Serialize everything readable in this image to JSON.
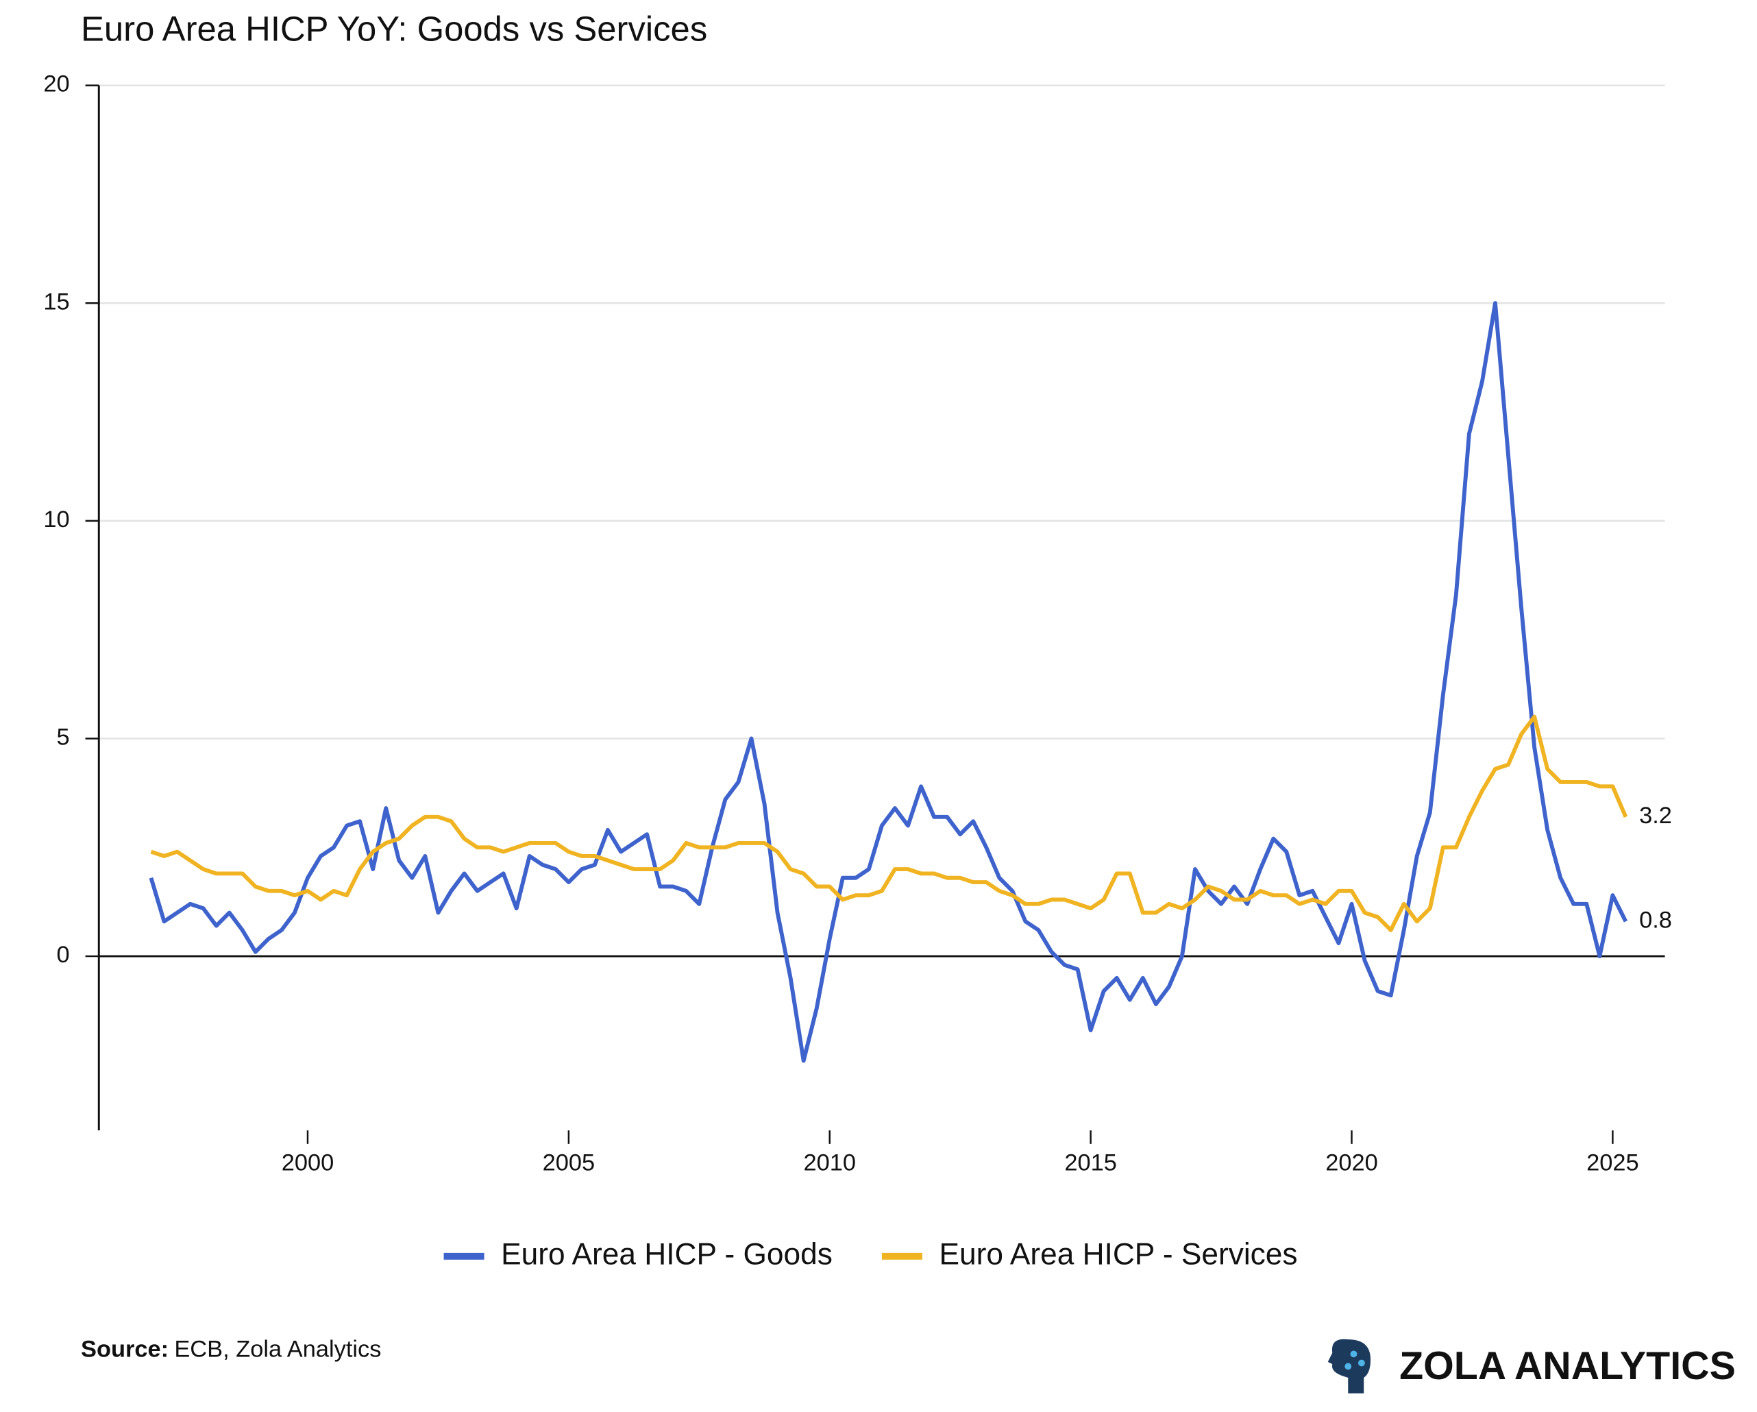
{
  "chart_data": {
    "type": "line",
    "title": "Euro Area HICP YoY: Goods vs Services",
    "x": [
      1997,
      1997.25,
      1997.5,
      1997.75,
      1998,
      1998.25,
      1998.5,
      1998.75,
      1999,
      1999.25,
      1999.5,
      1999.75,
      2000,
      2000.25,
      2000.5,
      2000.75,
      2001,
      2001.25,
      2001.5,
      2001.75,
      2002,
      2002.25,
      2002.5,
      2002.75,
      2003,
      2003.25,
      2003.5,
      2003.75,
      2004,
      2004.25,
      2004.5,
      2004.75,
      2005,
      2005.25,
      2005.5,
      2005.75,
      2006,
      2006.25,
      2006.5,
      2006.75,
      2007,
      2007.25,
      2007.5,
      2007.75,
      2008,
      2008.25,
      2008.5,
      2008.75,
      2009,
      2009.25,
      2009.5,
      2009.75,
      2010,
      2010.25,
      2010.5,
      2010.75,
      2011,
      2011.25,
      2011.5,
      2011.75,
      2012,
      2012.25,
      2012.5,
      2012.75,
      2013,
      2013.25,
      2013.5,
      2013.75,
      2014,
      2014.25,
      2014.5,
      2014.75,
      2015,
      2015.25,
      2015.5,
      2015.75,
      2016,
      2016.25,
      2016.5,
      2016.75,
      2017,
      2017.25,
      2017.5,
      2017.75,
      2018,
      2018.25,
      2018.5,
      2018.75,
      2019,
      2019.25,
      2019.5,
      2019.75,
      2020,
      2020.25,
      2020.5,
      2020.75,
      2021,
      2021.25,
      2021.5,
      2021.75,
      2022,
      2022.25,
      2022.5,
      2022.75,
      2023,
      2023.25,
      2023.5,
      2023.75,
      2024,
      2024.25,
      2024.5,
      2024.75,
      2025,
      2025.25
    ],
    "series": [
      {
        "name": "Euro Area HICP - Goods",
        "color": "#3f63cc",
        "values": [
          1.8,
          0.8,
          1.0,
          1.2,
          1.1,
          0.7,
          1.0,
          0.6,
          0.1,
          0.4,
          0.6,
          1.0,
          1.8,
          2.3,
          2.5,
          3.0,
          3.1,
          2.0,
          3.4,
          2.2,
          1.8,
          2.3,
          1.0,
          1.5,
          1.9,
          1.5,
          1.7,
          1.9,
          1.1,
          2.3,
          2.1,
          2.0,
          1.7,
          2.0,
          2.1,
          2.9,
          2.4,
          2.6,
          2.8,
          1.6,
          1.6,
          1.5,
          1.2,
          2.5,
          3.6,
          4.0,
          5.0,
          3.5,
          1.0,
          -0.5,
          -2.4,
          -1.2,
          0.4,
          1.8,
          1.8,
          2.0,
          3.0,
          3.4,
          3.0,
          3.9,
          3.2,
          3.2,
          2.8,
          3.1,
          2.5,
          1.8,
          1.5,
          0.8,
          0.6,
          0.1,
          -0.2,
          -0.3,
          -1.7,
          -0.8,
          -0.5,
          -1.0,
          -0.5,
          -1.1,
          -0.7,
          0.0,
          2.0,
          1.5,
          1.2,
          1.6,
          1.2,
          2.0,
          2.7,
          2.4,
          1.4,
          1.5,
          0.9,
          0.3,
          1.2,
          -0.1,
          -0.8,
          -0.9,
          0.6,
          2.3,
          3.3,
          6.0,
          8.3,
          12.0,
          13.2,
          15.0,
          11.5,
          8.0,
          4.8,
          2.9,
          1.8,
          1.2,
          1.2,
          0.0,
          1.4,
          0.8
        ]
      },
      {
        "name": "Euro Area HICP - Services",
        "color": "#f0b322",
        "values": [
          2.4,
          2.3,
          2.4,
          2.2,
          2.0,
          1.9,
          1.9,
          1.9,
          1.6,
          1.5,
          1.5,
          1.4,
          1.5,
          1.3,
          1.5,
          1.4,
          2.0,
          2.4,
          2.6,
          2.7,
          3.0,
          3.2,
          3.2,
          3.1,
          2.7,
          2.5,
          2.5,
          2.4,
          2.5,
          2.6,
          2.6,
          2.6,
          2.4,
          2.3,
          2.3,
          2.2,
          2.1,
          2.0,
          2.0,
          2.0,
          2.2,
          2.6,
          2.5,
          2.5,
          2.5,
          2.6,
          2.6,
          2.6,
          2.4,
          2.0,
          1.9,
          1.6,
          1.6,
          1.3,
          1.4,
          1.4,
          1.5,
          2.0,
          2.0,
          1.9,
          1.9,
          1.8,
          1.8,
          1.7,
          1.7,
          1.5,
          1.4,
          1.2,
          1.2,
          1.3,
          1.3,
          1.2,
          1.1,
          1.3,
          1.9,
          1.9,
          1.0,
          1.0,
          1.2,
          1.1,
          1.3,
          1.6,
          1.5,
          1.3,
          1.3,
          1.5,
          1.4,
          1.4,
          1.2,
          1.3,
          1.2,
          1.5,
          1.5,
          1.0,
          0.9,
          0.6,
          1.2,
          0.8,
          1.1,
          2.5,
          2.5,
          3.2,
          3.8,
          4.3,
          4.4,
          5.1,
          5.5,
          4.3,
          4.0,
          4.0,
          4.0,
          3.9,
          3.9,
          3.2
        ]
      }
    ],
    "xlim": [
      1996,
      2026
    ],
    "xticks": [
      2000,
      2005,
      2010,
      2015,
      2020,
      2025
    ],
    "ylim": [
      -4,
      20
    ],
    "yticks": [
      0,
      5,
      10,
      15,
      20
    ],
    "grid": true,
    "legend": "bottom"
  },
  "source": {
    "label": "Source:",
    "text": "ECB, Zola Analytics"
  },
  "brand": "ZOLA ANALYTICS"
}
